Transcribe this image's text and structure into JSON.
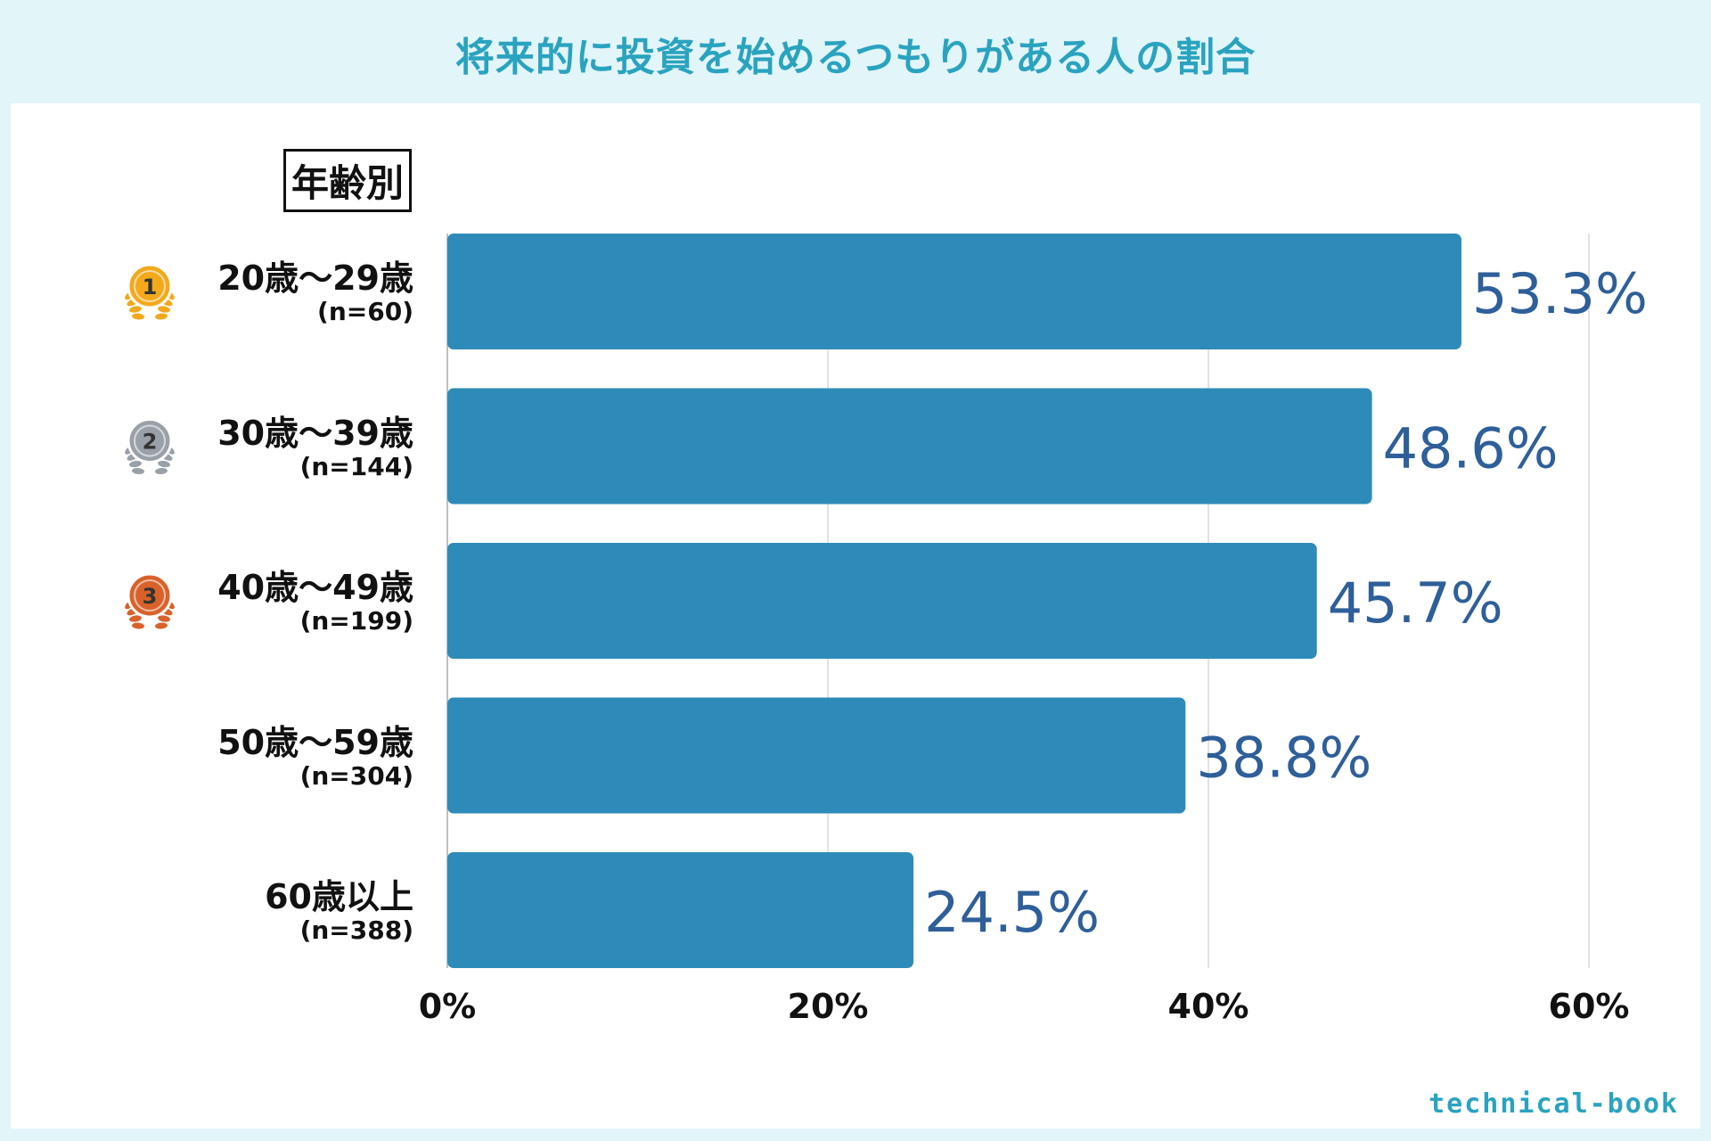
{
  "title": "将来的に投資を始めるつもりがある人の割合",
  "group_label": "年齢別",
  "watermark": "technical-book",
  "colors": {
    "bar": "#2e8bb9",
    "value_label": "#2e5f99",
    "title": "#2aa3bf",
    "gold": "#f2a91c",
    "silver": "#9aa0a8",
    "bronze": "#d9622b"
  },
  "chart_data": {
    "type": "bar",
    "orientation": "horizontal",
    "title": "将来的に投資を始めるつもりがある人の割合",
    "xlabel": "",
    "ylabel": "",
    "xlim": [
      0,
      60
    ],
    "xticks": [
      "0%",
      "20%",
      "40%",
      "60%"
    ],
    "grid": true,
    "categories": [
      {
        "label": "20歳～29歳",
        "n": "(n=60)",
        "rank": "1",
        "medal": "gold"
      },
      {
        "label": "30歳～39歳",
        "n": "(n=144)",
        "rank": "2",
        "medal": "silver"
      },
      {
        "label": "40歳～49歳",
        "n": "(n=199)",
        "rank": "3",
        "medal": "bronze"
      },
      {
        "label": "50歳～59歳",
        "n": "(n=304)",
        "rank": "",
        "medal": ""
      },
      {
        "label": "60歳以上",
        "n": "(n=388)",
        "rank": "",
        "medal": ""
      }
    ],
    "values": [
      53.3,
      48.6,
      45.7,
      38.8,
      24.5
    ],
    "value_labels": [
      "53.3%",
      "48.6%",
      "45.7%",
      "38.8%",
      "24.5%"
    ]
  }
}
